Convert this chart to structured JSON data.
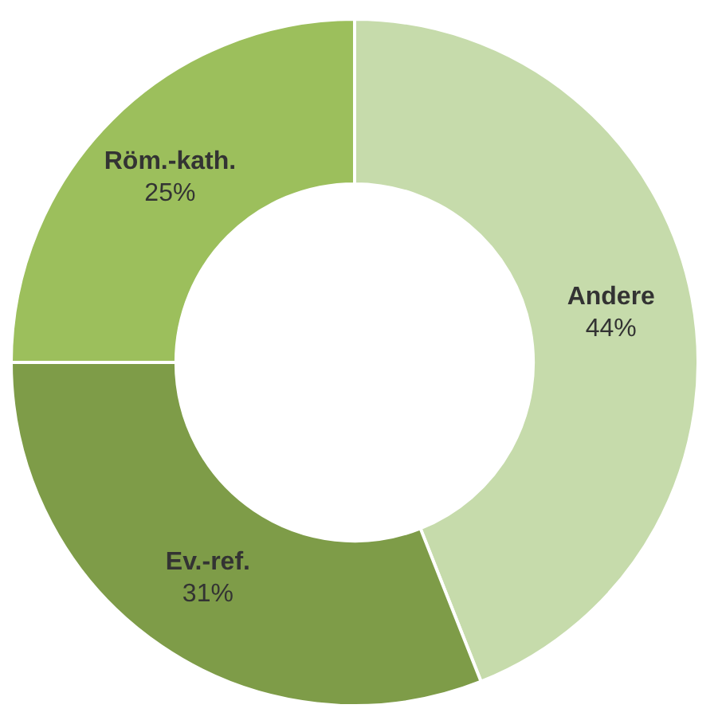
{
  "chart_data": {
    "type": "donut",
    "categories": [
      "Andere",
      "Ev.-ref.",
      "Röm.-kath."
    ],
    "values": [
      44,
      31,
      25
    ],
    "colors": [
      "#c6dbab",
      "#7e9c48",
      "#9cbf5c"
    ],
    "value_labels": [
      "44%",
      "31%",
      "25%"
    ],
    "legend": false
  }
}
